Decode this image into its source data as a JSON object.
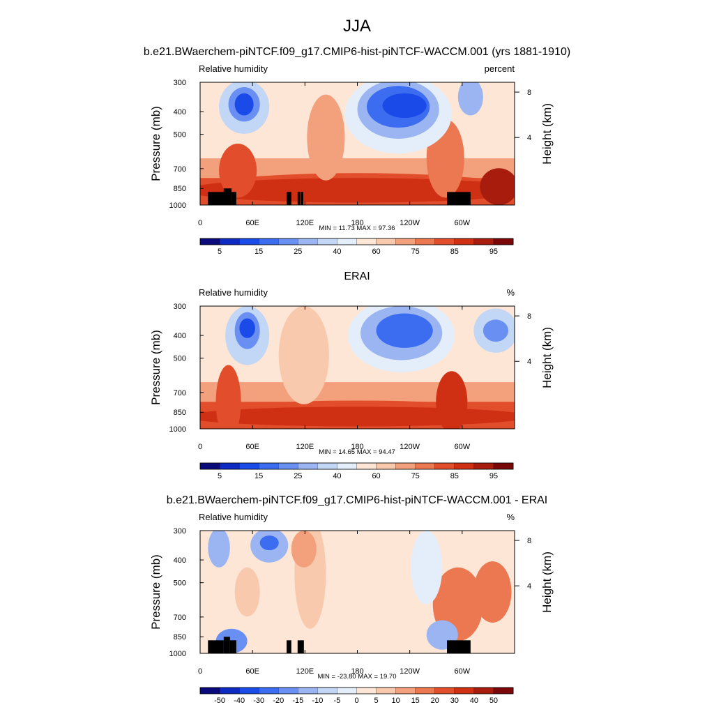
{
  "figure_title": "JJA",
  "chart_data": [
    {
      "type": "heatmap",
      "title": "b.e21.BWaerchem-piNTCF.f09_g17.CMIP6-hist-piNTCF-WACCM.001 (yrs 1881-1910)",
      "variable": "Relative humidity",
      "units": "percent",
      "xlabel": "",
      "ylabel": "Pressure (mb)",
      "y2label": "Height (km)",
      "x_ticks": [
        "0",
        "60E",
        "120E",
        "180",
        "120W",
        "60W"
      ],
      "x_tick_values": [
        0,
        60,
        120,
        180,
        240,
        300
      ],
      "xlim": [
        0,
        360
      ],
      "y_ticks": [
        "300",
        "400",
        "500",
        "700",
        "850",
        "1000"
      ],
      "y_tick_values": [
        300,
        400,
        500,
        700,
        850,
        1000
      ],
      "ylim": [
        300,
        1000
      ],
      "y2_ticks": [
        "8",
        "4"
      ],
      "y2_tick_values": [
        8,
        4
      ],
      "min_label": "MIN =  11.73  MAX =  97.36",
      "min": 11.73,
      "max": 97.36,
      "colorbar_labels": [
        "5",
        "15",
        "25",
        "40",
        "60",
        "75",
        "85",
        "95"
      ],
      "colorbar_levels": [
        5,
        10,
        15,
        20,
        25,
        30,
        40,
        50,
        60,
        70,
        75,
        80,
        85,
        90,
        95
      ],
      "colorbar_colors": [
        "#0a0a7a",
        "#0d2ac2",
        "#1a4be8",
        "#3c6cf0",
        "#6a8ff2",
        "#9bb5f2",
        "#c2d6f6",
        "#e4eefb",
        "#fde6d6",
        "#f9c9ad",
        "#f3a07d",
        "#ec7852",
        "#e24d2b",
        "#cf3014",
        "#a71c0c",
        "#7a0808"
      ],
      "masked": true
    },
    {
      "type": "heatmap",
      "title": "ERAI",
      "variable": "Relative humidity",
      "units": "%",
      "xlabel": "",
      "ylabel": "Pressure (mb)",
      "y2label": "Height (km)",
      "x_ticks": [
        "0",
        "60E",
        "120E",
        "180",
        "120W",
        "60W"
      ],
      "x_tick_values": [
        0,
        60,
        120,
        180,
        240,
        300
      ],
      "xlim": [
        0,
        360
      ],
      "y_ticks": [
        "300",
        "400",
        "500",
        "700",
        "850",
        "1000"
      ],
      "y_tick_values": [
        300,
        400,
        500,
        700,
        850,
        1000
      ],
      "ylim": [
        300,
        1000
      ],
      "y2_ticks": [
        "8",
        "4"
      ],
      "y2_tick_values": [
        8,
        4
      ],
      "min_label": "MIN =  14.65  MAX =  94.47",
      "min": 14.65,
      "max": 94.47,
      "colorbar_labels": [
        "5",
        "15",
        "25",
        "40",
        "60",
        "75",
        "85",
        "95"
      ],
      "colorbar_levels": [
        5,
        10,
        15,
        20,
        25,
        30,
        40,
        50,
        60,
        70,
        75,
        80,
        85,
        90,
        95
      ],
      "colorbar_colors": [
        "#0a0a7a",
        "#0d2ac2",
        "#1a4be8",
        "#3c6cf0",
        "#6a8ff2",
        "#9bb5f2",
        "#c2d6f6",
        "#e4eefb",
        "#fde6d6",
        "#f9c9ad",
        "#f3a07d",
        "#ec7852",
        "#e24d2b",
        "#cf3014",
        "#a71c0c",
        "#7a0808"
      ],
      "masked": false
    },
    {
      "type": "heatmap",
      "title": "b.e21.BWaerchem-piNTCF.f09_g17.CMIP6-hist-piNTCF-WACCM.001 - ERAI",
      "variable": "Relative humidity",
      "units": "%",
      "xlabel": "",
      "ylabel": "Pressure (mb)",
      "y2label": "Height (km)",
      "x_ticks": [
        "0",
        "60E",
        "120E",
        "180",
        "120W",
        "60W"
      ],
      "x_tick_values": [
        0,
        60,
        120,
        180,
        240,
        300
      ],
      "xlim": [
        0,
        360
      ],
      "y_ticks": [
        "300",
        "400",
        "500",
        "700",
        "850",
        "1000"
      ],
      "y_tick_values": [
        300,
        400,
        500,
        700,
        850,
        1000
      ],
      "ylim": [
        300,
        1000
      ],
      "y2_ticks": [
        "8",
        "4"
      ],
      "y2_tick_values": [
        8,
        4
      ],
      "min_label": "MIN = -23.80  MAX =  19.70",
      "min": -23.8,
      "max": 19.7,
      "colorbar_labels": [
        "-50",
        "-40",
        "-30",
        "-20",
        "-15",
        "-10",
        "-5",
        "0",
        "5",
        "10",
        "15",
        "20",
        "30",
        "40",
        "50"
      ],
      "colorbar_levels": [
        -50,
        -40,
        -30,
        -20,
        -15,
        -10,
        -5,
        0,
        5,
        10,
        15,
        20,
        30,
        40,
        50
      ],
      "colorbar_colors": [
        "#0a0a7a",
        "#0d2ac2",
        "#1a4be8",
        "#3c6cf0",
        "#6a8ff2",
        "#9bb5f2",
        "#c2d6f6",
        "#e4eefb",
        "#fde6d6",
        "#f9c9ad",
        "#f3a07d",
        "#ec7852",
        "#e24d2b",
        "#cf3014",
        "#a71c0c",
        "#7a0808"
      ],
      "masked": true
    }
  ]
}
